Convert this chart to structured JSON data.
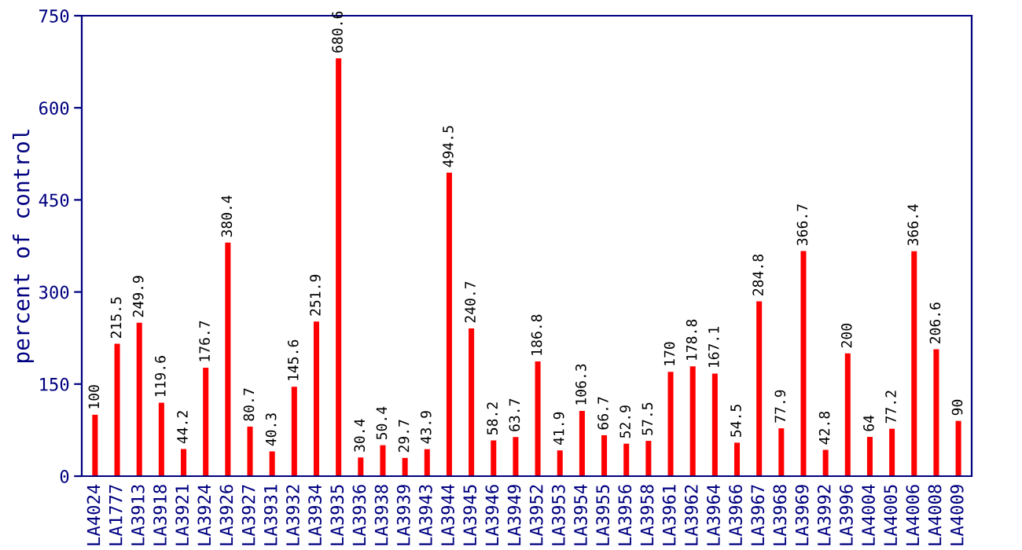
{
  "chart_data": {
    "type": "bar",
    "ylabel": "percent of control",
    "categories": [
      "LA4024",
      "LA1777",
      "LA3913",
      "LA3918",
      "LA3921",
      "LA3924",
      "LA3926",
      "LA3927",
      "LA3931",
      "LA3932",
      "LA3934",
      "LA3935",
      "LA3936",
      "LA3938",
      "LA3939",
      "LA3943",
      "LA3944",
      "LA3945",
      "LA3946",
      "LA3949",
      "LA3952",
      "LA3953",
      "LA3954",
      "LA3955",
      "LA3956",
      "LA3958",
      "LA3961",
      "LA3962",
      "LA3964",
      "LA3966",
      "LA3967",
      "LA3968",
      "LA3969",
      "LA3992",
      "LA3996",
      "LA4004",
      "LA4005",
      "LA4006",
      "LA4008",
      "LA4009"
    ],
    "values": [
      100,
      215.5,
      249.9,
      119.6,
      44.2,
      176.7,
      380.4,
      80.7,
      40.3,
      145.6,
      251.9,
      680.6,
      30.4,
      50.4,
      29.7,
      43.9,
      494.5,
      240.7,
      58.2,
      63.7,
      186.8,
      41.9,
      106.3,
      66.7,
      52.9,
      57.5,
      170,
      178.8,
      167.1,
      54.5,
      284.8,
      77.9,
      366.7,
      42.8,
      200,
      64,
      77.2,
      366.4,
      206.6,
      90
    ],
    "color": "#ff0000",
    "data_labels": true,
    "ylim": [
      0,
      750
    ],
    "yticks": [
      0,
      150,
      300,
      450,
      600,
      750
    ],
    "grid": false,
    "legend": false
  }
}
